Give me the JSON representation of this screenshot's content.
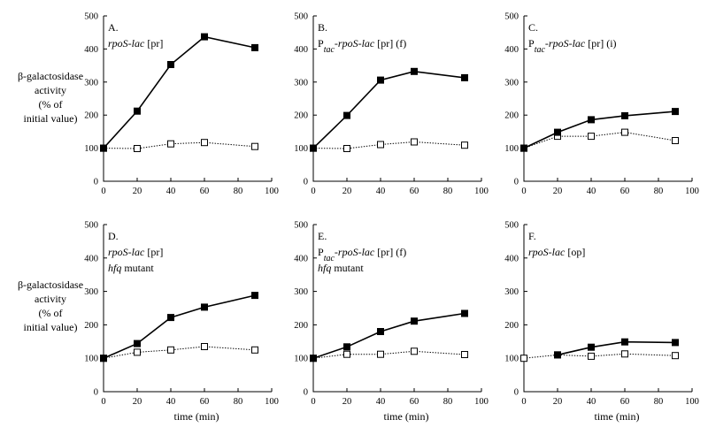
{
  "chart_data": [
    {
      "type": "line",
      "panel": "A",
      "title_parts": [
        {
          "text": "A.",
          "style": "normal"
        },
        {
          "text": "rpoS-lac",
          "style": "italic"
        },
        {
          "text": " [pr]",
          "style": "normal"
        }
      ],
      "subtitle_parts": [],
      "x": [
        0,
        20,
        40,
        60,
        90
      ],
      "series": [
        {
          "name": "filled squares",
          "marker": "filled",
          "values": [
            100,
            212,
            353,
            437,
            404
          ]
        },
        {
          "name": "open squares",
          "marker": "open",
          "values": [
            100,
            99,
            113,
            117,
            105
          ]
        }
      ],
      "xlim": [
        0,
        100
      ],
      "ylim": [
        0,
        500
      ],
      "xticks": [
        "0",
        "20",
        "40",
        "60",
        "80",
        "100"
      ],
      "yticks": [
        "0",
        "100",
        "200",
        "300",
        "400",
        "500"
      ],
      "ylabel_lines": [
        "β-galactosidase",
        "activity",
        "(% of",
        "initial value)"
      ],
      "xlabel": ""
    },
    {
      "type": "line",
      "panel": "B",
      "title_parts": [
        {
          "text": "B.",
          "style": "normal"
        },
        {
          "text": "P",
          "style": "normal"
        },
        {
          "text": "tac",
          "style": "italic-sub"
        },
        {
          "text": "-rpoS-lac",
          "style": "italic"
        },
        {
          "text": " [pr] (f)",
          "style": "normal"
        }
      ],
      "subtitle_parts": [],
      "x": [
        0,
        20,
        40,
        60,
        90
      ],
      "series": [
        {
          "name": "filled squares",
          "marker": "filled",
          "values": [
            100,
            199,
            306,
            332,
            313
          ]
        },
        {
          "name": "open squares",
          "marker": "open",
          "values": [
            100,
            99,
            111,
            119,
            109
          ]
        }
      ],
      "xlim": [
        0,
        100
      ],
      "ylim": [
        0,
        500
      ],
      "xticks": [
        "0",
        "20",
        "40",
        "60",
        "80",
        "100"
      ],
      "yticks": [
        "0",
        "100",
        "200",
        "300",
        "400",
        "500"
      ],
      "ylabel_lines": [],
      "xlabel": ""
    },
    {
      "type": "line",
      "panel": "C",
      "title_parts": [
        {
          "text": "C.",
          "style": "normal"
        },
        {
          "text": "P",
          "style": "normal"
        },
        {
          "text": "tac",
          "style": "italic-sub"
        },
        {
          "text": "-rpoS-lac",
          "style": "italic"
        },
        {
          "text": " [pr] (i)",
          "style": "normal"
        }
      ],
      "subtitle_parts": [],
      "x": [
        0,
        20,
        40,
        60,
        90
      ],
      "series": [
        {
          "name": "filled squares",
          "marker": "filled",
          "values": [
            100,
            148,
            186,
            198,
            211
          ]
        },
        {
          "name": "open squares",
          "marker": "open",
          "values": [
            100,
            136,
            136,
            148,
            123
          ]
        }
      ],
      "xlim": [
        0,
        100
      ],
      "ylim": [
        0,
        500
      ],
      "xticks": [
        "0",
        "20",
        "40",
        "60",
        "80",
        "100"
      ],
      "yticks": [
        "0",
        "100",
        "200",
        "300",
        "400",
        "500"
      ],
      "ylabel_lines": [],
      "xlabel": ""
    },
    {
      "type": "line",
      "panel": "D",
      "title_parts": [
        {
          "text": "D.",
          "style": "normal"
        },
        {
          "text": "rpoS-lac",
          "style": "italic"
        },
        {
          "text": " [pr]",
          "style": "normal"
        }
      ],
      "subtitle_parts": [
        {
          "text": "hfq",
          "style": "italic"
        },
        {
          "text": " mutant",
          "style": "normal"
        }
      ],
      "x": [
        0,
        20,
        40,
        60,
        90
      ],
      "series": [
        {
          "name": "filled squares",
          "marker": "filled",
          "values": [
            100,
            144,
            222,
            253,
            288
          ]
        },
        {
          "name": "open squares",
          "marker": "open",
          "values": [
            100,
            118,
            125,
            135,
            125
          ]
        }
      ],
      "xlim": [
        0,
        100
      ],
      "ylim": [
        0,
        500
      ],
      "xticks": [
        "0",
        "20",
        "40",
        "60",
        "80",
        "100"
      ],
      "yticks": [
        "0",
        "100",
        "200",
        "300",
        "400",
        "500"
      ],
      "ylabel_lines": [
        "β-galactosidase",
        "activity",
        "(% of",
        "initial value)"
      ],
      "xlabel": "time (min)"
    },
    {
      "type": "line",
      "panel": "E",
      "title_parts": [
        {
          "text": "E.",
          "style": "normal"
        },
        {
          "text": "P",
          "style": "normal"
        },
        {
          "text": "tac",
          "style": "italic-sub"
        },
        {
          "text": "-rpoS-lac",
          "style": "italic"
        },
        {
          "text": " [pr] (f)",
          "style": "normal"
        }
      ],
      "subtitle_parts": [
        {
          "text": "hfq",
          "style": "italic"
        },
        {
          "text": " mutant",
          "style": "normal"
        }
      ],
      "x": [
        0,
        20,
        40,
        60,
        90
      ],
      "series": [
        {
          "name": "filled squares",
          "marker": "filled",
          "values": [
            100,
            134,
            180,
            211,
            234
          ]
        },
        {
          "name": "open squares",
          "marker": "open",
          "values": [
            100,
            112,
            112,
            121,
            111
          ]
        }
      ],
      "xlim": [
        0,
        100
      ],
      "ylim": [
        0,
        500
      ],
      "xticks": [
        "0",
        "20",
        "40",
        "60",
        "80",
        "100"
      ],
      "yticks": [
        "0",
        "100",
        "200",
        "300",
        "400",
        "500"
      ],
      "ylabel_lines": [],
      "xlabel": "time (min)"
    },
    {
      "type": "line",
      "panel": "F",
      "title_parts": [
        {
          "text": "F.",
          "style": "normal"
        },
        {
          "text": "rpoS-lac",
          "style": "italic"
        },
        {
          "text": " [op]",
          "style": "normal"
        }
      ],
      "subtitle_parts": [],
      "x_filled": [
        20,
        40,
        60,
        90
      ],
      "x": [
        0,
        20,
        40,
        60,
        90
      ],
      "series": [
        {
          "name": "filled squares",
          "marker": "filled",
          "x": [
            20,
            40,
            60,
            90
          ],
          "values": [
            110,
            133,
            149,
            147
          ]
        },
        {
          "name": "open squares",
          "marker": "open",
          "x": [
            0,
            20,
            40,
            60,
            90
          ],
          "values": [
            100,
            110,
            106,
            113,
            108
          ]
        }
      ],
      "xlim": [
        0,
        100
      ],
      "ylim": [
        0,
        500
      ],
      "xticks": [
        "0",
        "20",
        "40",
        "60",
        "80",
        "100"
      ],
      "yticks": [
        "0",
        "100",
        "200",
        "300",
        "400",
        "500"
      ],
      "ylabel_lines": [],
      "xlabel": "time (min)"
    }
  ]
}
